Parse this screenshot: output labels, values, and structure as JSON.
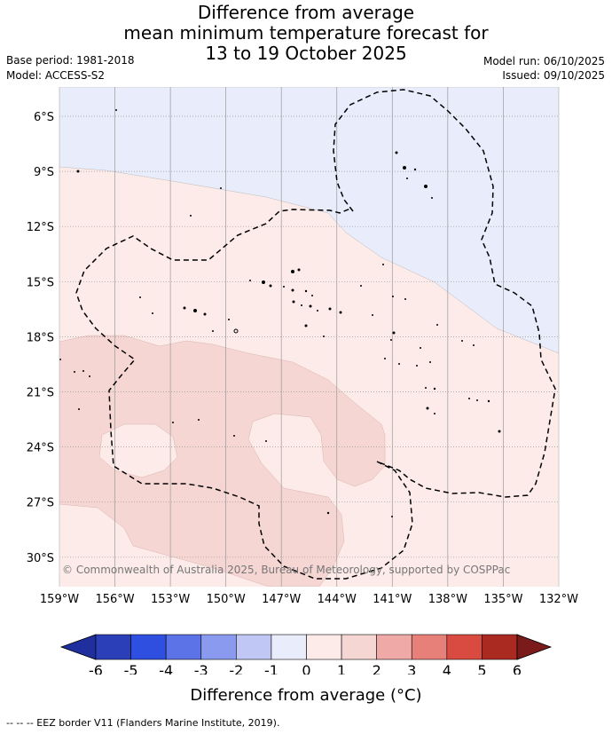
{
  "title": {
    "line1": "Difference from average",
    "line2": "mean minimum temperature forecast for",
    "line3": "13 to 19 October 2025"
  },
  "meta": {
    "base_period": "Base period: 1981-2018",
    "model": "Model: ACCESS-S2",
    "model_run": "Model run: 06/10/2025",
    "issued": "Issued: 09/10/2025"
  },
  "map": {
    "lat_labels": [
      "6°S",
      "9°S",
      "12°S",
      "15°S",
      "18°S",
      "21°S",
      "24°S",
      "27°S",
      "30°S"
    ],
    "lon_labels": [
      "159°W",
      "156°W",
      "153°W",
      "150°W",
      "147°W",
      "144°W",
      "141°W",
      "138°W",
      "135°W",
      "132°W"
    ],
    "copyright": "© Commonwealth of Australia 2025, Bureau of Meteorology, supported by COSPPac",
    "colors": {
      "minus1_0": "#e8ecfb",
      "zero_1": "#fcebe9",
      "one_2": "#f5d6d3",
      "grid": "#999999",
      "eez": "#000000"
    }
  },
  "colorbar": {
    "tick_labels": [
      "-6",
      "-5",
      "-4",
      "-3",
      "-2",
      "-1",
      "0",
      "1",
      "2",
      "3",
      "4",
      "5",
      "6"
    ],
    "colors": [
      "#1f2f9e",
      "#2a3fb8",
      "#2f4fe0",
      "#5b73e6",
      "#8a9aee",
      "#c0c7f5",
      "#e8ecfb",
      "#fcebe9",
      "#f5d6d3",
      "#efa9a6",
      "#e8807a",
      "#d94b40",
      "#aa2a22",
      "#7a1a1a"
    ],
    "title": "Difference from average (°C)"
  },
  "footnote": "-- -- -- EEZ border V11 (Flanders Marine Institute, 2019)."
}
